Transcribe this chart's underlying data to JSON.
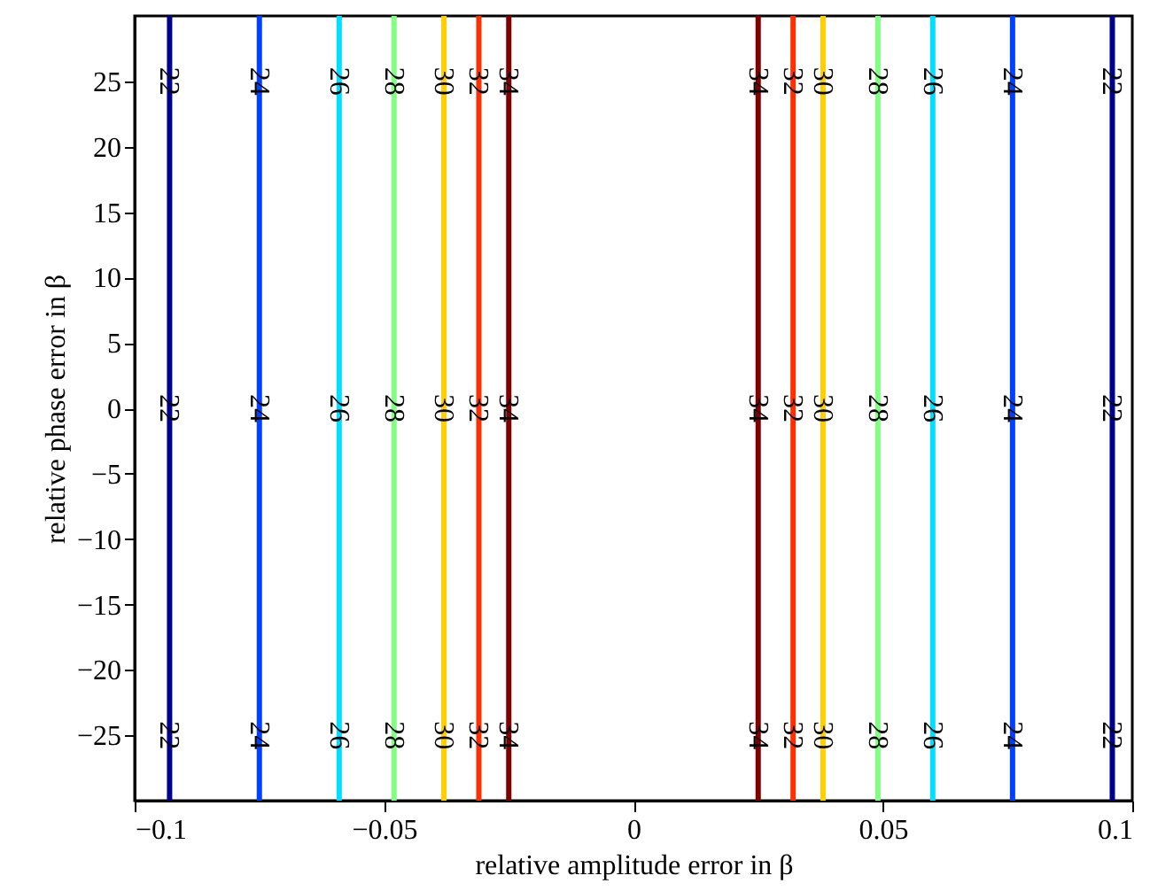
{
  "chart_data": {
    "type": "line",
    "xlabel": "relative amplitude error in β",
    "ylabel": "relative phase error in β",
    "xlim": [
      -0.1,
      0.1
    ],
    "ylim": [
      -30,
      30
    ],
    "xticks": [
      -0.1,
      -0.05,
      0,
      0.05,
      0.1
    ],
    "yticks": [
      -25,
      -20,
      -15,
      -10,
      -5,
      0,
      5,
      10,
      15,
      20,
      25
    ],
    "grid": false,
    "marker": "none",
    "line_style": "solid",
    "series": [
      {
        "name": "22",
        "color": "#00008f",
        "x": [
          -0.093,
          -0.093
        ],
        "values": [
          -30,
          30
        ]
      },
      {
        "name": "24",
        "color": "#0040ff",
        "x": [
          -0.075,
          -0.075
        ],
        "values": [
          -30,
          30
        ]
      },
      {
        "name": "26",
        "color": "#00dfff",
        "x": [
          -0.059,
          -0.059
        ],
        "values": [
          -30,
          30
        ]
      },
      {
        "name": "28",
        "color": "#80ff80",
        "x": [
          -0.048,
          -0.048
        ],
        "values": [
          -30,
          30
        ]
      },
      {
        "name": "30",
        "color": "#ffcf00",
        "x": [
          -0.038,
          -0.038
        ],
        "values": [
          -30,
          30
        ]
      },
      {
        "name": "32",
        "color": "#ff3000",
        "x": [
          -0.031,
          -0.031
        ],
        "values": [
          -30,
          30
        ]
      },
      {
        "name": "34",
        "color": "#800000",
        "x": [
          -0.025,
          -0.025
        ],
        "values": [
          -30,
          30
        ]
      },
      {
        "name": "34",
        "color": "#800000",
        "x": [
          0.025,
          0.025
        ],
        "values": [
          -30,
          30
        ]
      },
      {
        "name": "32",
        "color": "#ff3000",
        "x": [
          0.032,
          0.032
        ],
        "values": [
          -30,
          30
        ]
      },
      {
        "name": "30",
        "color": "#ffcf00",
        "x": [
          0.038,
          0.038
        ],
        "values": [
          -30,
          30
        ]
      },
      {
        "name": "28",
        "color": "#80ff80",
        "x": [
          0.049,
          0.049
        ],
        "values": [
          -30,
          30
        ]
      },
      {
        "name": "26",
        "color": "#00dfff",
        "x": [
          0.06,
          0.06
        ],
        "values": [
          -30,
          30
        ]
      },
      {
        "name": "24",
        "color": "#0040ff",
        "x": [
          0.076,
          0.076
        ],
        "values": [
          -30,
          30
        ]
      },
      {
        "name": "22",
        "color": "#00008f",
        "x": [
          0.096,
          0.096
        ],
        "values": [
          -30,
          30
        ]
      }
    ]
  }
}
